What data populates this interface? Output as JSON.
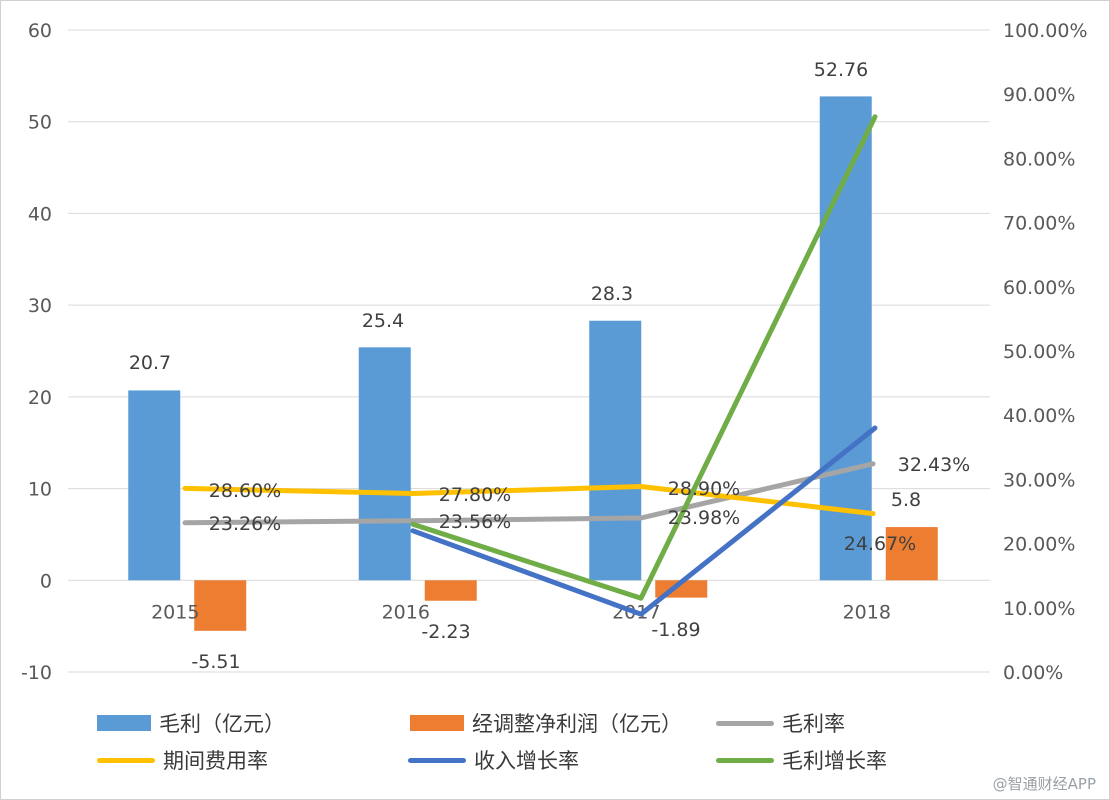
{
  "chart_data": {
    "type": "bar",
    "categories": [
      "2015",
      "2016",
      "2017",
      "2018"
    ],
    "left_axis": {
      "min": -10,
      "max": 60,
      "step": 10,
      "ticks": [
        "-10",
        "0",
        "10",
        "20",
        "30",
        "40",
        "50",
        "60"
      ]
    },
    "right_axis": {
      "min": 0,
      "max": 100,
      "step": 10,
      "ticks": [
        "0.00%",
        "10.00%",
        "20.00%",
        "30.00%",
        "40.00%",
        "50.00%",
        "60.00%",
        "70.00%",
        "80.00%",
        "90.00%",
        "100.00%"
      ]
    },
    "grid": true,
    "bar_series": [
      {
        "name": "毛利（亿元）",
        "color": "#5b9bd5",
        "axis": "left",
        "values": [
          20.7,
          25.4,
          28.3,
          52.76
        ],
        "labels": [
          "20.7",
          "25.4",
          "28.3",
          "52.76"
        ]
      },
      {
        "name": "经调整净利润（亿元）",
        "color": "#ed7d31",
        "axis": "left",
        "values": [
          -5.51,
          -2.23,
          -1.89,
          5.8
        ],
        "labels": [
          "-5.51",
          "-2.23",
          "-1.89",
          "5.8"
        ]
      }
    ],
    "line_series": [
      {
        "name": "毛利率",
        "color": "#a5a5a5",
        "axis": "right",
        "values": [
          23.26,
          23.56,
          23.98,
          32.43
        ],
        "labels": [
          "23.26%",
          "23.56%",
          "23.98%",
          "32.43%"
        ]
      },
      {
        "name": "期间费用率",
        "color": "#ffc000",
        "axis": "right",
        "values": [
          28.6,
          27.8,
          28.9,
          24.67
        ],
        "labels": [
          "28.60%",
          "27.80%",
          "28.90%",
          "24.67%"
        ]
      },
      {
        "name": "收入增长率",
        "color": "#4472c4",
        "axis": "right",
        "values": [
          null,
          22.0,
          9.0,
          38.0
        ],
        "labels": []
      },
      {
        "name": "毛利增长率",
        "color": "#70ad47",
        "axis": "right",
        "values": [
          null,
          23.0,
          11.5,
          86.5
        ],
        "labels": []
      }
    ]
  },
  "legend": [
    {
      "label": "毛利（亿元）",
      "color": "#5b9bd5",
      "kind": "bar"
    },
    {
      "label": "经调整净利润（亿元）",
      "color": "#ed7d31",
      "kind": "bar"
    },
    {
      "label": "毛利率",
      "color": "#a5a5a5",
      "kind": "line"
    },
    {
      "label": "期间费用率",
      "color": "#ffc000",
      "kind": "line"
    },
    {
      "label": "收入增长率",
      "color": "#4472c4",
      "kind": "line"
    },
    {
      "label": "毛利增长率",
      "color": "#70ad47",
      "kind": "line"
    }
  ],
  "watermark": "@智通财经APP"
}
